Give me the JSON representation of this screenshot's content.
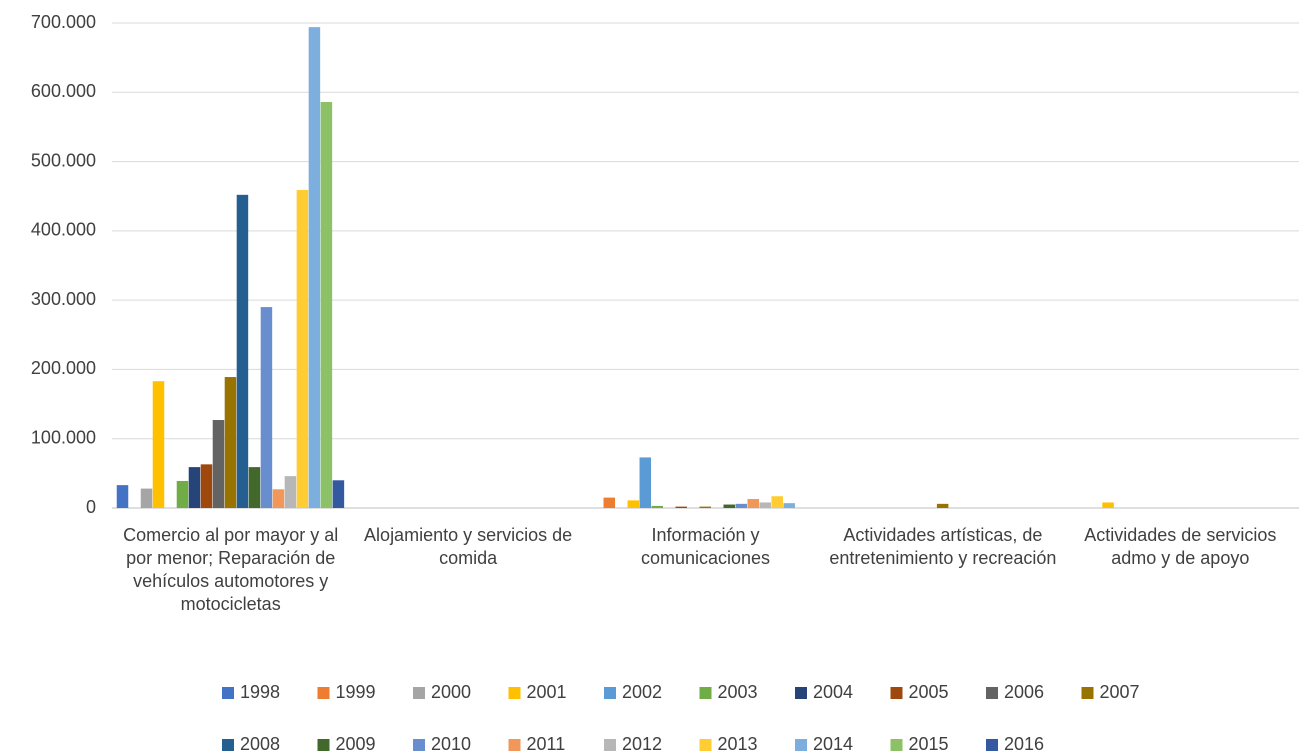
{
  "chart_data": {
    "type": "bar",
    "categories": [
      "Comercio al por mayor y al por menor; Reparación de vehículos automotores y motocicletas",
      "Alojamiento y servicios de comida",
      "Información y comunicaciones",
      "Actividades artísticas, de entretenimiento y recreación",
      "Actividades de servicios admo y de apoyo"
    ],
    "series": [
      {
        "name": "1998",
        "color": "#4472c4",
        "values": [
          33000,
          0,
          0,
          0,
          0
        ]
      },
      {
        "name": "1999",
        "color": "#ed7d31",
        "values": [
          0,
          0,
          15000,
          0,
          0
        ]
      },
      {
        "name": "2000",
        "color": "#a5a5a5",
        "values": [
          28000,
          0,
          0,
          0,
          0
        ]
      },
      {
        "name": "2001",
        "color": "#ffc000",
        "values": [
          183000,
          0,
          11000,
          0,
          8000
        ]
      },
      {
        "name": "2002",
        "color": "#5b9bd5",
        "values": [
          0,
          0,
          73000,
          0,
          0
        ]
      },
      {
        "name": "2003",
        "color": "#70ad47",
        "values": [
          39000,
          0,
          3000,
          0,
          0
        ]
      },
      {
        "name": "2004",
        "color": "#264478",
        "values": [
          59000,
          0,
          0,
          0,
          0
        ]
      },
      {
        "name": "2005",
        "color": "#9e480e",
        "values": [
          63000,
          0,
          2000,
          0,
          0
        ]
      },
      {
        "name": "2006",
        "color": "#636363",
        "values": [
          127000,
          0,
          0,
          0,
          0
        ]
      },
      {
        "name": "2007",
        "color": "#997300",
        "values": [
          189000,
          0,
          2000,
          6000,
          0
        ]
      },
      {
        "name": "2008",
        "color": "#255e91",
        "values": [
          452000,
          0,
          0,
          0,
          0
        ]
      },
      {
        "name": "2009",
        "color": "#43682b",
        "values": [
          59000,
          0,
          5000,
          0,
          0
        ]
      },
      {
        "name": "2010",
        "color": "#698ed0",
        "values": [
          290000,
          0,
          6000,
          0,
          0
        ]
      },
      {
        "name": "2011",
        "color": "#f1975a",
        "values": [
          27000,
          0,
          13000,
          0,
          0
        ]
      },
      {
        "name": "2012",
        "color": "#b7b7b7",
        "values": [
          46000,
          0,
          8000,
          0,
          0
        ]
      },
      {
        "name": "2013",
        "color": "#ffcd33",
        "values": [
          459000,
          0,
          17000,
          0,
          0
        ]
      },
      {
        "name": "2014",
        "color": "#7cafdd",
        "values": [
          694000,
          0,
          7000,
          0,
          0
        ]
      },
      {
        "name": "2015",
        "color": "#8cc168",
        "values": [
          586000,
          0,
          0,
          0,
          0
        ]
      },
      {
        "name": "2016",
        "color": "#335aa1",
        "values": [
          40000,
          0,
          0,
          0,
          0
        ]
      }
    ],
    "ylim": [
      0,
      700000
    ],
    "yticks": [
      0,
      {
        "value": 100000,
        "label": "100.000"
      },
      {
        "value": 200000,
        "label": "200.000"
      },
      {
        "value": 300000,
        "label": "300.000"
      },
      {
        "value": 400000,
        "label": "400.000"
      },
      {
        "value": 500000,
        "label": "500.000"
      },
      {
        "value": 600000,
        "label": "600.000"
      },
      {
        "value": 700000,
        "label": "700.000"
      }
    ],
    "grid": true,
    "legend": "bottom"
  }
}
